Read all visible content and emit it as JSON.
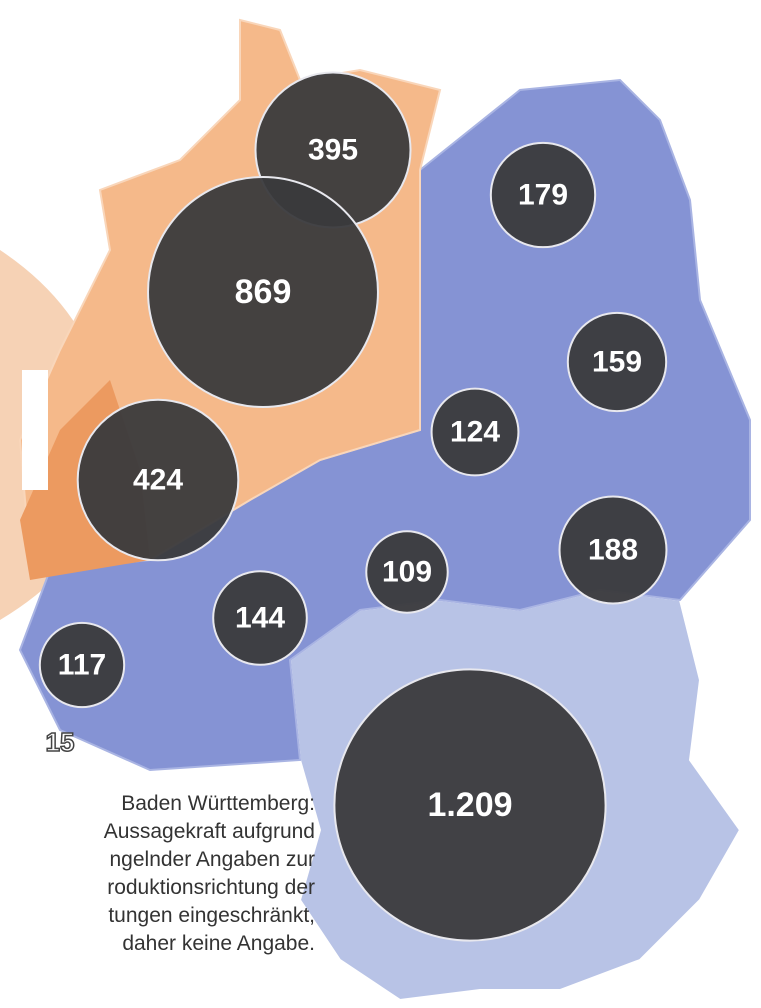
{
  "bubbles": [
    {
      "value": 395,
      "label": "395"
    },
    {
      "value": 869,
      "label": "869"
    },
    {
      "value": 424,
      "label": "424"
    },
    {
      "value": 179,
      "label": "179"
    },
    {
      "value": 159,
      "label": "159"
    },
    {
      "value": 124,
      "label": "124"
    },
    {
      "value": 188,
      "label": "188"
    },
    {
      "value": 109,
      "label": "109"
    },
    {
      "value": 144,
      "label": "144"
    },
    {
      "value": 117,
      "label": "117"
    },
    {
      "value": 1209,
      "label": "1.209"
    }
  ],
  "extra_label": "15",
  "note": [
    "Baden Württemberg:",
    "Aussagekraft aufgrund",
    "ngelnder Angaben zur",
    "roduktionsrichtung der",
    "tungen eingeschränkt,",
    "daher keine Angabe."
  ]
}
